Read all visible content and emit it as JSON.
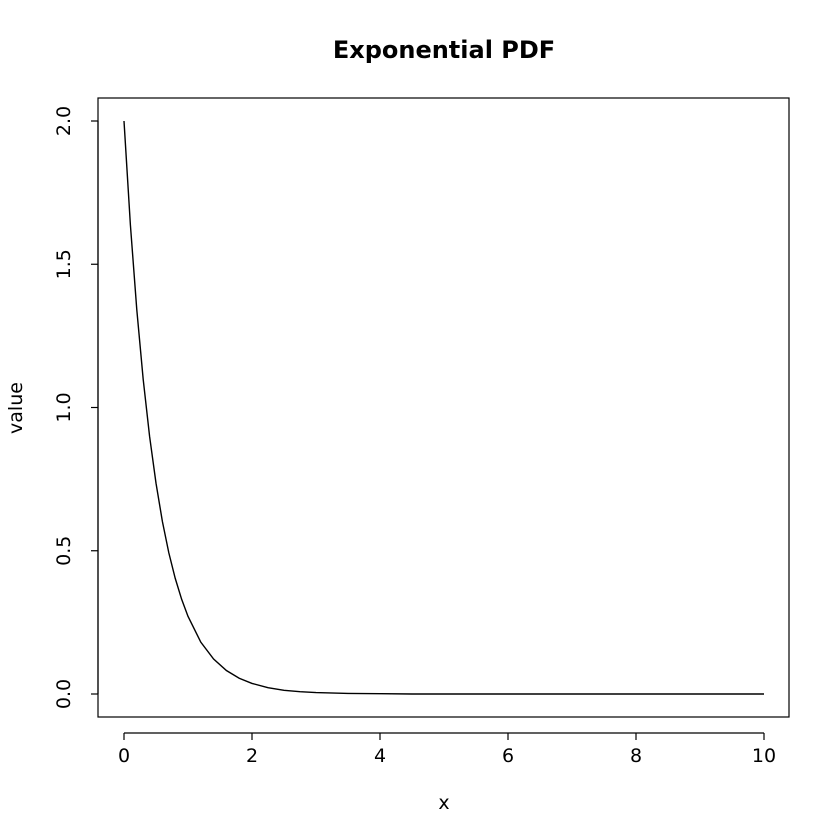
{
  "chart_data": {
    "type": "line",
    "title": "Exponential PDF",
    "xlabel": "x",
    "ylabel": "value",
    "xlim": [
      0,
      10
    ],
    "ylim": [
      0,
      2
    ],
    "x_ticks": [
      0,
      2,
      4,
      6,
      8,
      10
    ],
    "x_tick_labels": [
      "0",
      "2",
      "4",
      "6",
      "8",
      "10"
    ],
    "y_ticks": [
      0,
      0.5,
      1,
      1.5,
      2
    ],
    "y_tick_labels": [
      "0.0",
      "0.5",
      "1.0",
      "1.5",
      "2.0"
    ],
    "grid": false,
    "series": [
      {
        "color": "#000000",
        "x": [
          0,
          0.1,
          0.2,
          0.3,
          0.4,
          0.5,
          0.6,
          0.7,
          0.8,
          0.9,
          1.0,
          1.2,
          1.4,
          1.6,
          1.8,
          2.0,
          2.25,
          2.5,
          2.75,
          3.0,
          3.5,
          4.0,
          4.5,
          5.0,
          6.0,
          7.0,
          8.0,
          9.0,
          10.0
        ],
        "y": [
          2.0,
          1.637,
          1.341,
          1.098,
          0.899,
          0.736,
          0.602,
          0.493,
          0.404,
          0.331,
          0.271,
          0.181,
          0.122,
          0.082,
          0.055,
          0.037,
          0.022,
          0.013,
          0.008,
          0.005,
          0.002,
          0.001,
          0.0,
          0.0,
          0.0,
          0.0,
          0.0,
          0.0,
          0.0
        ]
      }
    ]
  }
}
